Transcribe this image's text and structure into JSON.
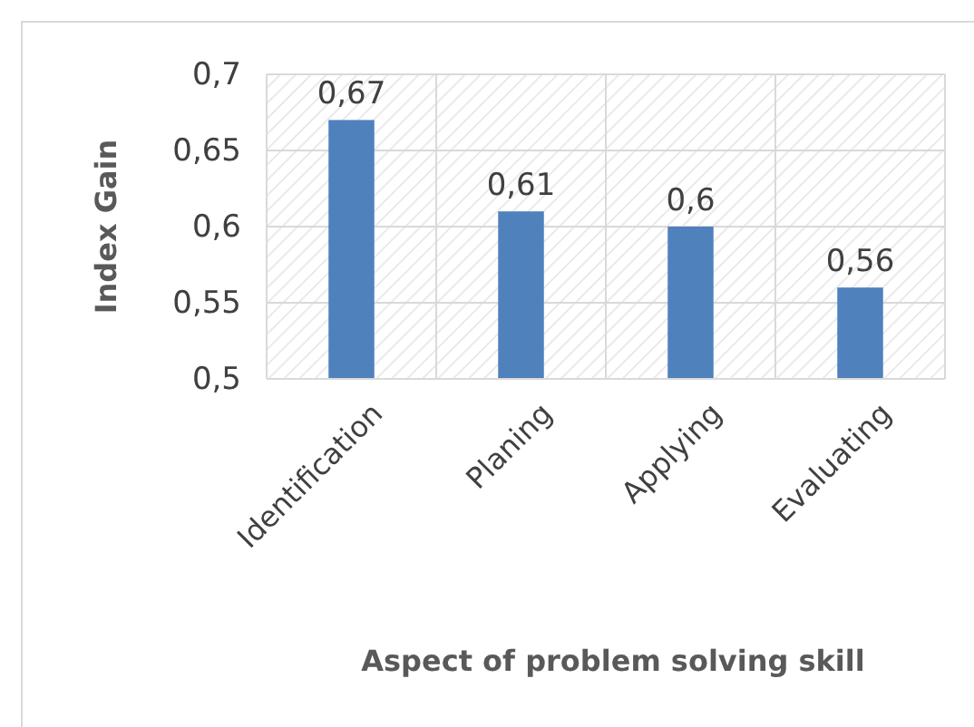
{
  "chart_data": {
    "type": "bar",
    "xlabel": "Aspect of problem solving skill",
    "ylabel": "Index Gain",
    "categories": [
      "Identification",
      "Planing",
      "Applying",
      "Evaluating"
    ],
    "values": [
      0.67,
      0.61,
      0.6,
      0.56
    ],
    "color": "#4f81bd",
    "value_labels": [
      "0,67",
      "0,61",
      "0,6",
      "0,56"
    ],
    "ylim": [
      0.5,
      0.7
    ],
    "yticks": [
      {
        "value": 0.5,
        "label": "0,5"
      },
      {
        "value": 0.55,
        "label": "0,55"
      },
      {
        "value": 0.6,
        "label": "0,6"
      },
      {
        "value": 0.65,
        "label": "0,65"
      },
      {
        "value": 0.7,
        "label": "0,7"
      }
    ],
    "grid": true
  }
}
